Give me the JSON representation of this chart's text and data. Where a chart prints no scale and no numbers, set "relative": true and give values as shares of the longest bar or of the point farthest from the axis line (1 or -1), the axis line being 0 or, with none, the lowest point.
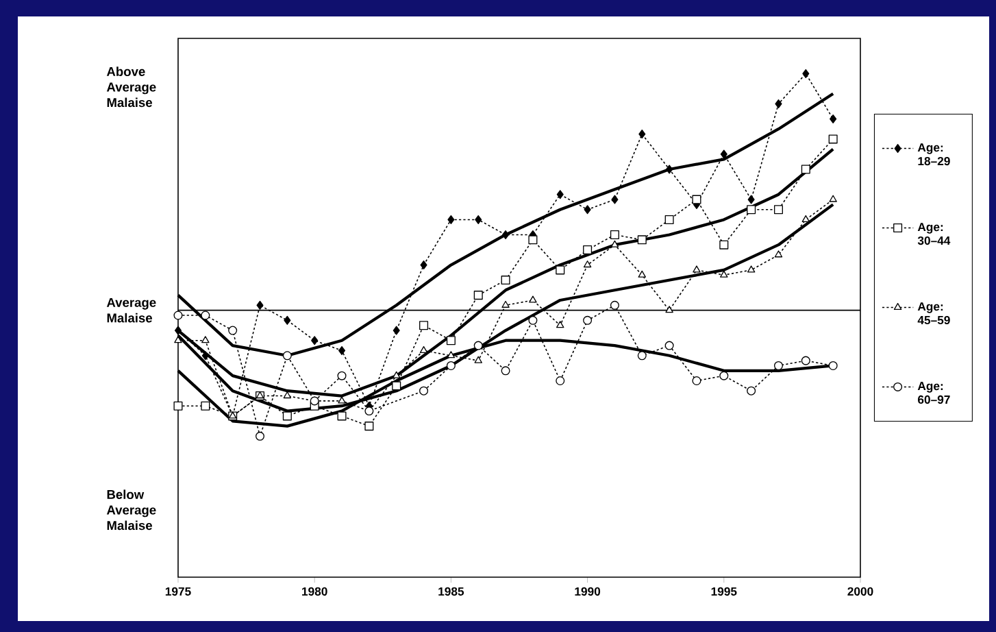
{
  "chart_data": {
    "type": "line",
    "relative": true,
    "x": [
      1975,
      1976,
      1977,
      1978,
      1979,
      1980,
      1981,
      1982,
      1983,
      1984,
      1985,
      1986,
      1987,
      1988,
      1989,
      1990,
      1991,
      1992,
      1993,
      1994,
      1995,
      1996,
      1997,
      1998,
      1999
    ],
    "xlim": [
      1975,
      2000
    ],
    "xticks": [
      1975,
      1980,
      1985,
      1990,
      1995,
      2000
    ],
    "legend": "right",
    "series": [
      {
        "name": "Age: 18–29",
        "color": "#000000",
        "marker": "diamond",
        "line_style": "dotted",
        "values": [
          0.49,
          0.44,
          0.32,
          0.54,
          0.51,
          0.47,
          0.45,
          0.34,
          0.49,
          0.62,
          0.71,
          0.71,
          0.68,
          0.68,
          0.76,
          0.73,
          0.75,
          0.88,
          0.81,
          0.74,
          0.84,
          0.75,
          0.94,
          1.0,
          0.91
        ]
      },
      {
        "name": "Age: 30–44",
        "color": "#000000",
        "marker": "square",
        "line_style": "dotted",
        "values": [
          0.34,
          0.34,
          0.32,
          0.36,
          0.32,
          0.34,
          0.32,
          0.3,
          0.38,
          0.5,
          0.47,
          0.56,
          0.59,
          0.67,
          0.61,
          0.65,
          0.68,
          0.67,
          0.71,
          0.75,
          0.66,
          0.73,
          0.73,
          0.81,
          0.87
        ]
      },
      {
        "name": "Age: 45–59",
        "color": "#000000",
        "marker": "triangle",
        "line_style": "dotted",
        "values": [
          0.47,
          0.47,
          0.32,
          0.36,
          0.36,
          0.35,
          0.35,
          0.33,
          0.4,
          0.45,
          0.44,
          0.43,
          0.54,
          0.55,
          0.5,
          0.62,
          0.66,
          0.6,
          0.53,
          0.61,
          0.6,
          0.61,
          0.64,
          0.71,
          0.75
        ]
      },
      {
        "name": "Age: 60–97",
        "color": "#000000",
        "marker": "circle",
        "line_style": "dotted",
        "values": [
          0.52,
          0.52,
          0.49,
          0.28,
          0.44,
          0.35,
          0.4,
          0.33,
          null,
          0.37,
          0.42,
          0.46,
          0.41,
          0.51,
          0.39,
          0.51,
          0.54,
          0.44,
          0.46,
          0.39,
          0.4,
          0.37,
          0.42,
          0.43,
          0.42
        ]
      },
      {
        "type": "line",
        "color": "#000000",
        "marker": "none",
        "line_style": "solid",
        "x": [
          1975,
          1977,
          1979,
          1981,
          1983,
          1985,
          1987,
          1989,
          1991,
          1993,
          1995,
          1997,
          1999
        ],
        "values": [
          0.56,
          0.46,
          0.44,
          0.47,
          0.54,
          0.62,
          0.68,
          0.73,
          0.77,
          0.81,
          0.83,
          0.89,
          0.96
        ]
      },
      {
        "type": "line",
        "color": "#000000",
        "marker": "none",
        "line_style": "solid",
        "x": [
          1975,
          1977,
          1979,
          1981,
          1983,
          1985,
          1987,
          1989,
          1991,
          1993,
          1995,
          1997,
          1999
        ],
        "values": [
          0.49,
          0.4,
          0.37,
          0.36,
          0.4,
          0.48,
          0.57,
          0.62,
          0.66,
          0.68,
          0.71,
          0.76,
          0.85
        ]
      },
      {
        "type": "line",
        "color": "#000000",
        "marker": "none",
        "line_style": "solid",
        "x": [
          1975,
          1977,
          1979,
          1981,
          1983,
          1985,
          1987,
          1989,
          1991,
          1993,
          1995,
          1997,
          1999
        ],
        "values": [
          0.48,
          0.37,
          0.33,
          0.34,
          0.37,
          0.42,
          0.49,
          0.55,
          0.57,
          0.59,
          0.61,
          0.66,
          0.74
        ]
      },
      {
        "type": "line",
        "color": "#000000",
        "marker": "none",
        "line_style": "solid",
        "x": [
          1975,
          1977,
          1979,
          1981,
          1983,
          1985,
          1987,
          1989,
          1991,
          1993,
          1995,
          1997,
          1999
        ],
        "values": [
          0.41,
          0.31,
          0.3,
          0.33,
          0.39,
          0.44,
          0.47,
          0.47,
          0.46,
          0.44,
          0.41,
          0.41,
          0.42
        ]
      }
    ],
    "ref_lines": [
      {
        "axis": "y",
        "value": 0.53,
        "label": "Average Malaise"
      }
    ],
    "annotations": [
      "Above Average Malaise",
      "Below Average Malaise"
    ]
  }
}
